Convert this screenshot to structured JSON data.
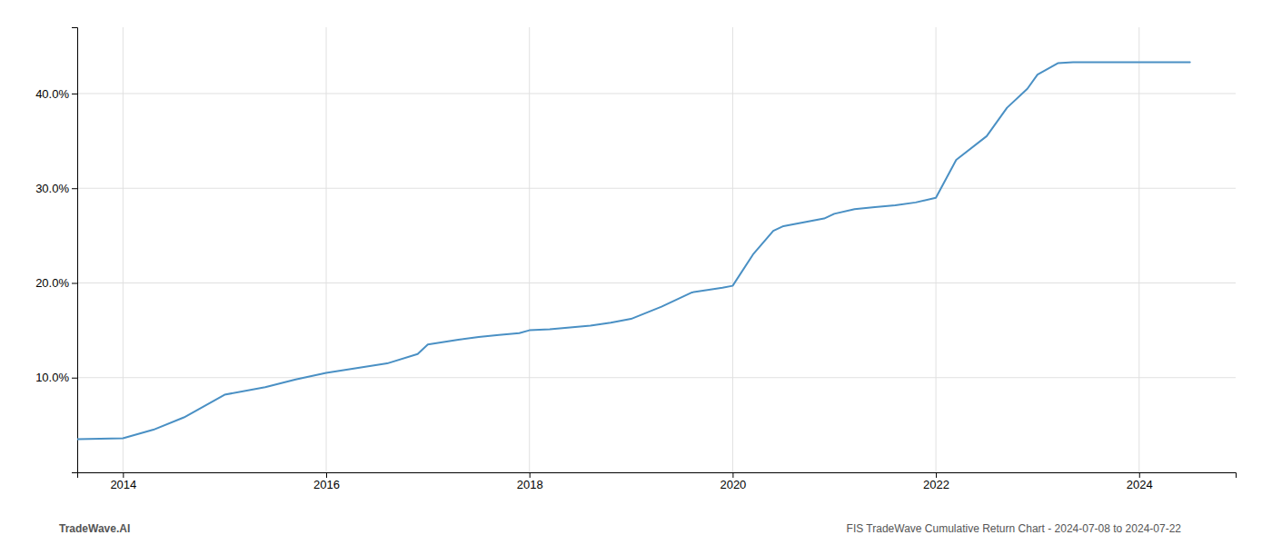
{
  "chart_data": {
    "type": "line",
    "annotations": [
      "TradeWave.AI",
      "FIS TradeWave Cumulative Return Chart - 2024-07-08 to 2024-07-22"
    ],
    "x": [
      2013.55,
      2014.0,
      2014.3,
      2014.6,
      2015.0,
      2015.4,
      2015.7,
      2016.0,
      2016.3,
      2016.6,
      2016.9,
      2017.0,
      2017.3,
      2017.5,
      2017.7,
      2017.9,
      2018.0,
      2018.2,
      2018.4,
      2018.6,
      2018.8,
      2019.0,
      2019.3,
      2019.6,
      2019.9,
      2020.0,
      2020.2,
      2020.4,
      2020.5,
      2020.7,
      2020.9,
      2021.0,
      2021.2,
      2021.4,
      2021.6,
      2021.8,
      2022.0,
      2022.2,
      2022.5,
      2022.7,
      2022.9,
      2023.0,
      2023.2,
      2023.35,
      2023.4,
      2024.0,
      2024.5
    ],
    "values": [
      3.5,
      3.6,
      4.5,
      5.8,
      8.2,
      9.0,
      9.8,
      10.5,
      11.0,
      11.5,
      12.5,
      13.5,
      14.0,
      14.3,
      14.5,
      14.7,
      15.0,
      15.1,
      15.3,
      15.5,
      15.8,
      16.2,
      17.5,
      19.0,
      19.5,
      19.7,
      23.0,
      25.5,
      26.0,
      26.4,
      26.8,
      27.3,
      27.8,
      28.0,
      28.2,
      28.5,
      29.0,
      33.0,
      35.5,
      38.5,
      40.5,
      42.0,
      43.2,
      43.3,
      43.3,
      43.3,
      43.3
    ],
    "color": "#4a90c4",
    "xlim": [
      2013.55,
      2024.95
    ],
    "ylim": [
      0,
      47
    ],
    "xticks": [
      2014,
      2016,
      2018,
      2020,
      2022,
      2024
    ],
    "yticks": [
      {
        "value": 10.0,
        "label": "10.0%"
      },
      {
        "value": 20.0,
        "label": "20.0%"
      },
      {
        "value": 30.0,
        "label": "30.0%"
      },
      {
        "value": 40.0,
        "label": "40.0%"
      }
    ],
    "grid": true
  }
}
